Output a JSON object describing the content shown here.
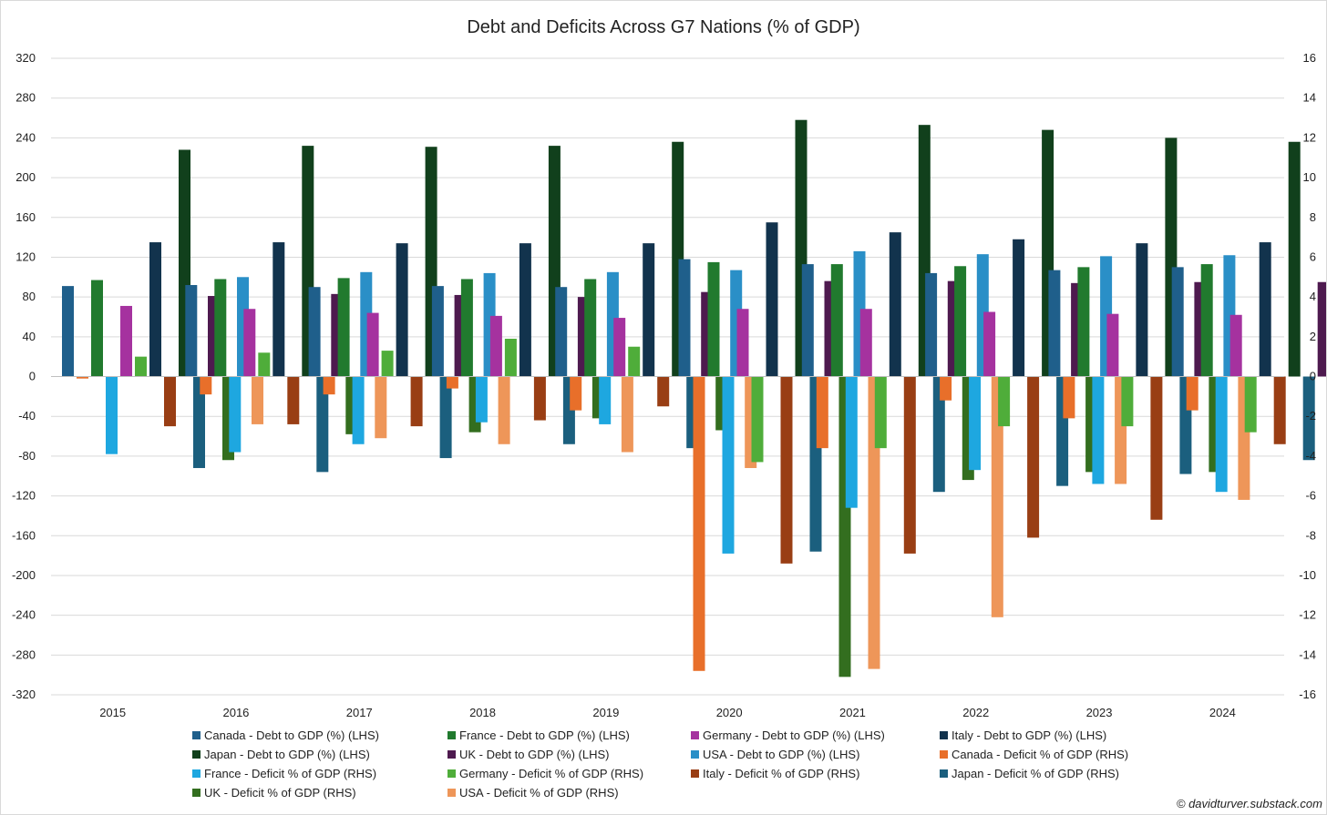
{
  "chart_data": {
    "type": "bar",
    "title": "Debt and Deficits Across G7 Nations (% of GDP)",
    "credit": "© davidturver.substack.com",
    "categories": [
      "2015",
      "2016",
      "2017",
      "2018",
      "2019",
      "2020",
      "2021",
      "2022",
      "2023",
      "2024"
    ],
    "y_left": {
      "min": -320,
      "max": 320,
      "step": 40,
      "ticks": [
        "320",
        "280",
        "240",
        "200",
        "160",
        "120",
        "80",
        "40",
        "0",
        "-40",
        "-80",
        "-120",
        "-160",
        "-200",
        "-240",
        "-280",
        "-320"
      ]
    },
    "y_right": {
      "min": -16,
      "max": 16,
      "step": 2,
      "ticks": [
        "16",
        "14",
        "12",
        "10",
        "8",
        "6",
        "4",
        "2",
        "0",
        "-2",
        "-4",
        "-6",
        "-8",
        "-10",
        "-12",
        "-14",
        "-16"
      ]
    },
    "grid": true,
    "legend_position": "bottom",
    "series": [
      {
        "name": "Canada - Debt to GDP (%) (LHS)",
        "axis": "left",
        "color": "#1f5f8b",
        "values": [
          91,
          92,
          90,
          91,
          90,
          118,
          113,
          104,
          107,
          110
        ]
      },
      {
        "name": "France - Debt to GDP (%) (LHS)",
        "axis": "left",
        "color": "#217a2e",
        "values": [
          97,
          98,
          99,
          98,
          98,
          115,
          113,
          111,
          110,
          113
        ]
      },
      {
        "name": "Germany - Debt to GDP (%) (LHS)",
        "axis": "left",
        "color": "#a5329f",
        "values": [
          71,
          68,
          64,
          61,
          59,
          68,
          68,
          65,
          63,
          62
        ]
      },
      {
        "name": "Italy - Debt to GDP (%) (LHS)",
        "axis": "left",
        "color": "#12334d",
        "values": [
          135,
          135,
          134,
          134,
          134,
          155,
          145,
          138,
          134,
          135
        ]
      },
      {
        "name": "Japan - Debt to GDP (%) (LHS)",
        "axis": "left",
        "color": "#11401c",
        "values": [
          228,
          232,
          231,
          232,
          236,
          258,
          253,
          248,
          240,
          236
        ]
      },
      {
        "name": "UK - Debt to GDP (%) (LHS)",
        "axis": "left",
        "color": "#4e1a4f",
        "values": [
          81,
          83,
          82,
          80,
          85,
          96,
          96,
          94,
          95,
          95
        ]
      },
      {
        "name": "USA - Debt to GDP (%) (LHS)",
        "axis": "left",
        "color": "#2a8fc7",
        "values": [
          100,
          105,
          104,
          105,
          107,
          126,
          123,
          121,
          122,
          124
        ]
      },
      {
        "name": "Canada - Deficit % of GDP (RHS)",
        "axis": "right",
        "color": "#e86f2a",
        "values": [
          -0.1,
          -0.9,
          -0.9,
          -0.6,
          -1.7,
          -14.8,
          -3.6,
          -1.2,
          -2.1,
          -1.7
        ]
      },
      {
        "name": "France - Deficit % of GDP (RHS)",
        "axis": "right",
        "color": "#1ea7e0",
        "values": [
          -3.9,
          -3.8,
          -3.4,
          -2.3,
          -2.4,
          -8.9,
          -6.6,
          -4.7,
          -5.4,
          -5.8
        ]
      },
      {
        "name": "Germany - Deficit % of GDP (RHS)",
        "axis": "right",
        "color": "#4fad3a",
        "values": [
          1.0,
          1.2,
          1.3,
          1.9,
          1.5,
          -4.3,
          -3.6,
          -2.5,
          -2.5,
          -2.8
        ]
      },
      {
        "name": "Italy - Deficit % of GDP (RHS)",
        "axis": "right",
        "color": "#993e14",
        "values": [
          -2.5,
          -2.4,
          -2.5,
          -2.2,
          -1.5,
          -9.4,
          -8.9,
          -8.1,
          -7.2,
          -3.4
        ]
      },
      {
        "name": "Japan - Deficit % of GDP (RHS)",
        "axis": "right",
        "color": "#1b5f7e",
        "values": [
          -4.6,
          -4.8,
          -4.1,
          -3.4,
          -3.6,
          -8.8,
          -5.8,
          -5.5,
          -4.9,
          -4.2
        ]
      },
      {
        "name": "UK - Deficit % of GDP (RHS)",
        "axis": "right",
        "color": "#336e1f",
        "values": [
          -4.2,
          -2.9,
          -2.8,
          -2.1,
          -2.7,
          -15.1,
          -5.2,
          -4.8,
          -4.8,
          -4.8
        ]
      },
      {
        "name": "USA - Deficit % of GDP (RHS)",
        "axis": "right",
        "color": "#ee9659",
        "values": [
          -2.4,
          -3.1,
          -3.4,
          -3.8,
          -4.6,
          -14.7,
          -12.1,
          -5.4,
          -6.2,
          -6.1
        ]
      }
    ]
  }
}
